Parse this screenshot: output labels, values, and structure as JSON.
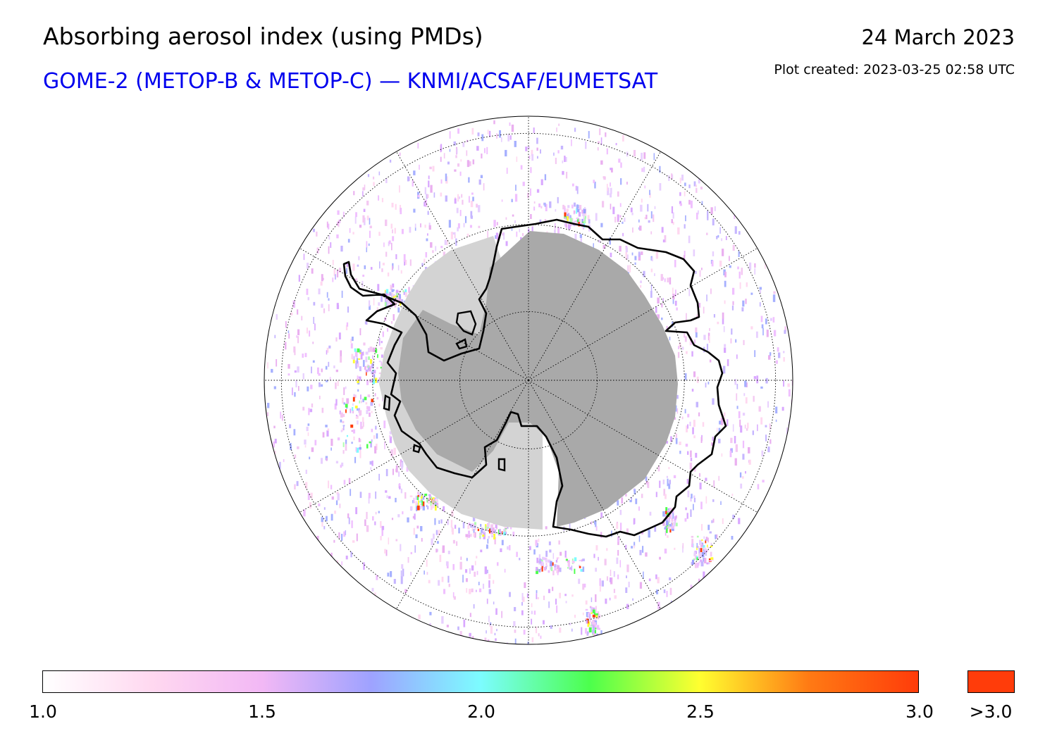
{
  "header": {
    "title": "Absorbing aerosol index (using PMDs)",
    "subtitle": "GOME-2 (METOP-B & METOP-C) — KNMI/ACSAF/EUMETSAT",
    "date": "24 March 2023",
    "plot_created": "Plot created: 2023-03-25 02:58 UTC"
  },
  "map": {
    "projection": "south-polar-stereographic",
    "meridian_count": 12,
    "latitude_circles": 3,
    "colors": {
      "no_data_light": "#d3d3d3",
      "no_data_dark": "#a9a9a9",
      "coastline": "#000000",
      "grid": "#000000"
    }
  },
  "colorbar": {
    "min": 1.0,
    "max": 3.0,
    "ticks": [
      "1.0",
      "1.5",
      "2.0",
      "2.5",
      "3.0"
    ],
    "over_label": ">3.0",
    "over_color": "#ff3c0a",
    "colors": [
      "#ffffff",
      "#ffd8f0",
      "#f2b8f5",
      "#9ea2ff",
      "#7cfcff",
      "#4cff4c",
      "#ffff30",
      "#ff7a14",
      "#ff3c0a"
    ]
  }
}
